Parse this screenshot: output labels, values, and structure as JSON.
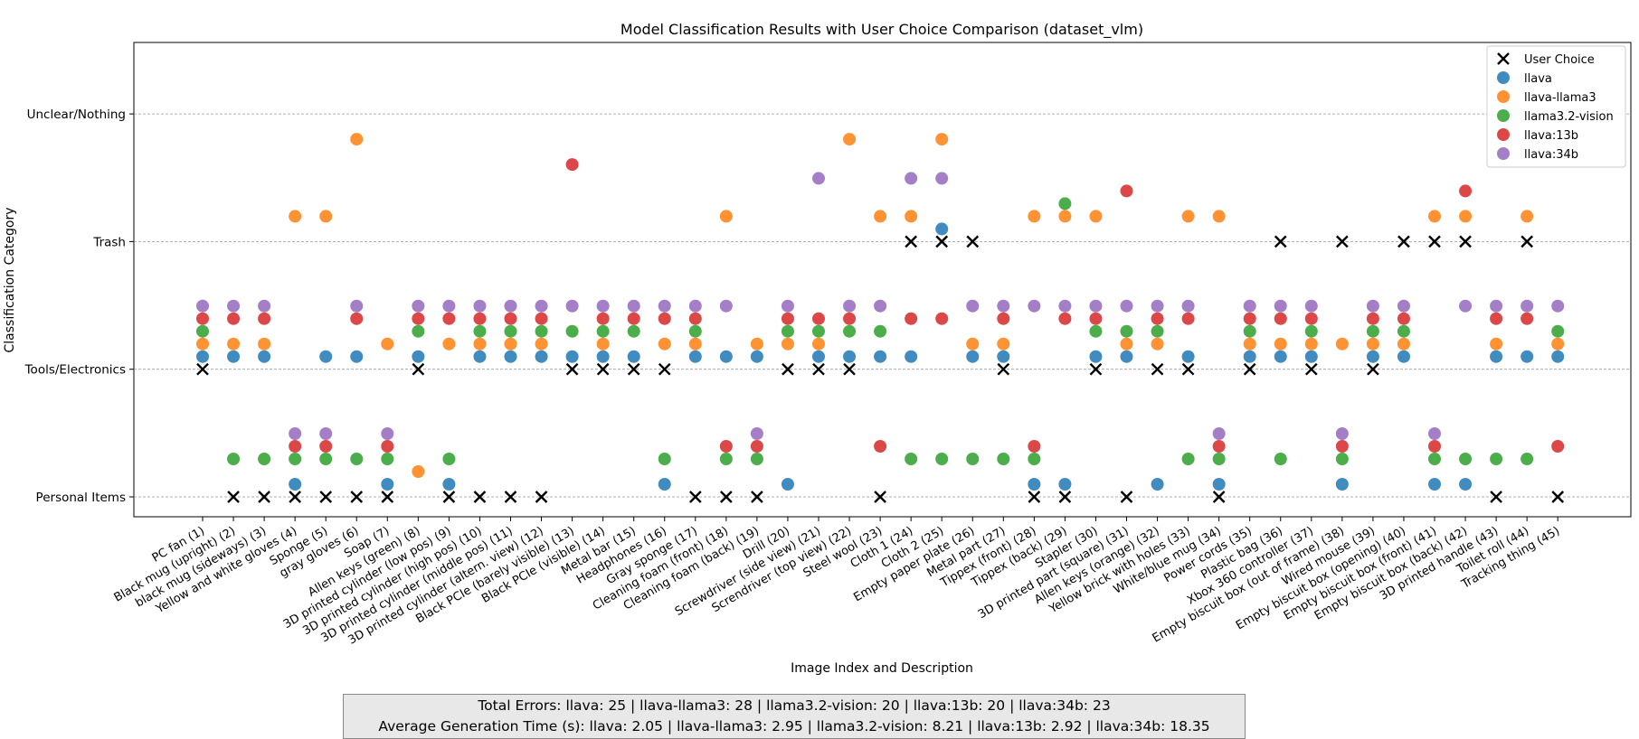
{
  "chart_data": {
    "type": "scatter",
    "title": "Model Classification Results with User Choice Comparison (dataset_vlm)",
    "xlabel": "Image Index and Description",
    "ylabel": "Classification Category",
    "categories_y": [
      "Personal Items",
      "Tools/Electronics",
      "Trash",
      "Unclear/Nothing"
    ],
    "categories_x": [
      "PC fan (1)",
      "Black mug (upright) (2)",
      "black mug (sideways) (3)",
      "Yellow and white gloves (4)",
      "Sponge (5)",
      "gray gloves (6)",
      "Soap (7)",
      "Allen keys (green) (8)",
      "3D printed cylinder (low pos) (9)",
      "3D printed cylinder (high pos) (10)",
      "3D printed cylinder (middle pos) (11)",
      "3D printed cylinder (altern. view) (12)",
      "Black PCIe (barely visible) (13)",
      "Black PCIe (visible) (14)",
      "Metal bar (15)",
      "Headphones (16)",
      "Gray sponge (17)",
      "Cleaning foam (front) (18)",
      "Cleaning foam (back) (19)",
      "Drill (20)",
      "Screwdriver (side view) (21)",
      "Screndriver (top view) (22)",
      "Steel wool (23)",
      "Cloth 1 (24)",
      "Cloth 2 (25)",
      "Empty paper plate (26)",
      "Metal part (27)",
      "Tippex (front) (28)",
      "Tippex (back) (29)",
      "Stapler (30)",
      "3D printed part (square) (31)",
      "Allen keys (orange) (32)",
      "Yellow brick with holes (33)",
      "White/blue mug (34)",
      "Power cords (35)",
      "Plastic bag (36)",
      "Xbox 360 controller (37)",
      "Empty biscuit box (out of frame) (38)",
      "Wired mouse (39)",
      "Empty biscuit box (opening) (40)",
      "Empty biscuit box (front) (41)",
      "Empty biscuit box (back) (42)",
      "3D printed handle (43)",
      "Toilet roll (44)",
      "Tracking thing (45)"
    ],
    "ylim": [
      -0.25,
      3.1
    ],
    "grid": "horizontal dashed",
    "legend_position": "top-right",
    "series": [
      {
        "name": "User Choice",
        "color": "#000000",
        "marker": "x",
        "values": [
          1,
          0,
          0,
          0,
          0,
          0,
          0,
          1,
          0,
          0,
          0,
          0,
          1,
          1,
          1,
          1,
          0,
          0,
          0,
          1,
          1,
          1,
          0,
          2,
          2,
          2,
          1,
          0,
          0,
          1,
          0,
          1,
          1,
          0,
          1,
          2,
          1,
          2,
          1,
          2,
          2,
          2,
          0,
          2,
          0
        ]
      },
      {
        "name": "llava",
        "color": "#1f77b4",
        "marker": "o",
        "values": [
          1,
          1,
          1,
          0,
          1,
          1,
          0,
          1,
          0,
          1,
          1,
          1,
          1,
          1,
          1,
          0,
          1,
          1,
          1,
          0,
          1,
          1,
          1,
          1,
          2,
          1,
          1,
          0,
          0,
          1,
          1,
          0,
          1,
          0,
          1,
          1,
          1,
          0,
          1,
          1,
          0,
          0,
          1,
          1,
          1
        ]
      },
      {
        "name": "llava-llama3",
        "color": "#ff7f0e",
        "marker": "o",
        "values": [
          1,
          1,
          1,
          2,
          2,
          3,
          1,
          0,
          1,
          1,
          1,
          1,
          null,
          1,
          null,
          1,
          1,
          2,
          1,
          1,
          1,
          3,
          2,
          2,
          3,
          1,
          1,
          2,
          2,
          2,
          1,
          1,
          2,
          2,
          1,
          1,
          1,
          1,
          1,
          1,
          2,
          2,
          1,
          2,
          1
        ]
      },
      {
        "name": "llama3.2-vision",
        "color": "#2ca02c",
        "marker": "o",
        "values": [
          1,
          0,
          0,
          0,
          0,
          0,
          0,
          1,
          0,
          1,
          1,
          1,
          1,
          1,
          1,
          0,
          1,
          0,
          0,
          1,
          1,
          1,
          1,
          0,
          0,
          0,
          0,
          0,
          2,
          1,
          1,
          1,
          0,
          0,
          1,
          0,
          1,
          0,
          1,
          1,
          0,
          0,
          0,
          0,
          1
        ]
      },
      {
        "name": "llava:13b",
        "color": "#d62728",
        "marker": "o",
        "values": [
          1,
          1,
          1,
          0,
          0,
          1,
          0,
          1,
          1,
          1,
          1,
          1,
          3,
          1,
          1,
          1,
          1,
          0,
          0,
          1,
          1,
          1,
          0,
          1,
          1,
          null,
          1,
          0,
          1,
          1,
          2,
          1,
          1,
          0,
          1,
          1,
          1,
          0,
          1,
          1,
          0,
          2,
          1,
          1,
          0
        ]
      },
      {
        "name": "llava:34b",
        "color": "#9467bd",
        "marker": "o",
        "values": [
          1,
          1,
          1,
          0,
          0,
          1,
          0,
          1,
          1,
          1,
          1,
          1,
          1,
          1,
          1,
          1,
          1,
          1,
          0,
          1,
          2,
          1,
          1,
          2,
          2,
          1,
          1,
          1,
          1,
          1,
          1,
          1,
          1,
          0,
          1,
          1,
          1,
          0,
          1,
          1,
          0,
          1,
          1,
          1,
          1
        ]
      }
    ],
    "annotations": {
      "errors_line": "Total Errors: llava: 25 | llava-llama3: 28 | llama3.2-vision: 20 | llava:13b: 20 | llava:34b: 23",
      "time_line": "Average Generation Time (s): llava: 2.05 | llava-llama3: 2.95 | llama3.2-vision: 8.21 | llava:13b: 2.92 | llava:34b: 18.35"
    }
  }
}
